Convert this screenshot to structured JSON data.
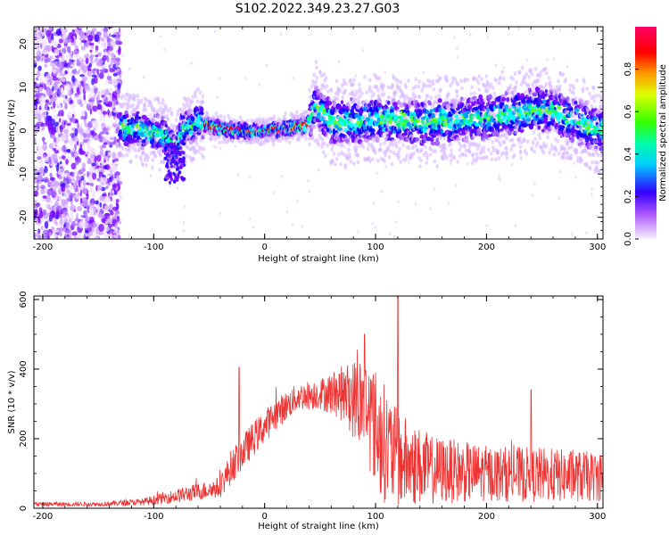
{
  "figure": {
    "title": "S102.2022.349.23.27.G03"
  },
  "chart_data": [
    {
      "type": "heatmap",
      "xlabel": "Height of straight line (km)",
      "ylabel": "Frequency (Hz)",
      "xlim": [
        -208,
        305
      ],
      "ylim": [
        -25,
        24
      ],
      "xticks": [
        -200,
        -100,
        0,
        100,
        200,
        300
      ],
      "yticks": [
        -20,
        -10,
        0,
        10,
        20
      ],
      "colorbar": {
        "label": "Normalized spectral amplitude",
        "range": [
          0,
          1
        ],
        "ticks": [
          0.0,
          0.2,
          0.4,
          0.6,
          0.8
        ],
        "colormap": [
          "#f8f0ff",
          "#7700ff",
          "#0000ff",
          "#00ffff",
          "#00ff00",
          "#ffff00",
          "#ff0000",
          "#ff0066"
        ]
      },
      "ridge": {
        "description_points_x": [
          -130,
          -110,
          -90,
          -80,
          -75,
          -60,
          -40,
          -20,
          0,
          20,
          40,
          45,
          60,
          100,
          150,
          200,
          250,
          275,
          300
        ],
        "frequency_hz": [
          1,
          0,
          -1,
          -5,
          0,
          2,
          0.5,
          0,
          0,
          0.5,
          1.5,
          6,
          2,
          2.5,
          2,
          3,
          5,
          3,
          0
        ]
      }
    },
    {
      "type": "line",
      "xlabel": "Height of straight line (km)",
      "ylabel": "SNR (10 * v/v)",
      "xlim": [
        -208,
        305
      ],
      "ylim": [
        0,
        610
      ],
      "xticks": [
        -200,
        -100,
        0,
        100,
        200,
        300
      ],
      "yticks": [
        0,
        200,
        400,
        600
      ],
      "color": "#ee3333",
      "envelope": {
        "x": [
          -208,
          -150,
          -110,
          -80,
          -40,
          -30,
          -10,
          10,
          30,
          50,
          70,
          90,
          105,
          120,
          150,
          200,
          250,
          305
        ],
        "mean": [
          12,
          12,
          18,
          35,
          60,
          120,
          200,
          270,
          320,
          330,
          330,
          300,
          200,
          140,
          110,
          100,
          95,
          90
        ],
        "amplitude": [
          6,
          6,
          10,
          20,
          30,
          50,
          50,
          45,
          40,
          45,
          80,
          150,
          180,
          140,
          100,
          80,
          80,
          70
        ]
      },
      "peaks": [
        {
          "x": -23,
          "y": 405
        },
        {
          "x": 120,
          "y": 610
        },
        {
          "x": 90,
          "y": 500
        },
        {
          "x": 240,
          "y": 340
        }
      ]
    }
  ]
}
